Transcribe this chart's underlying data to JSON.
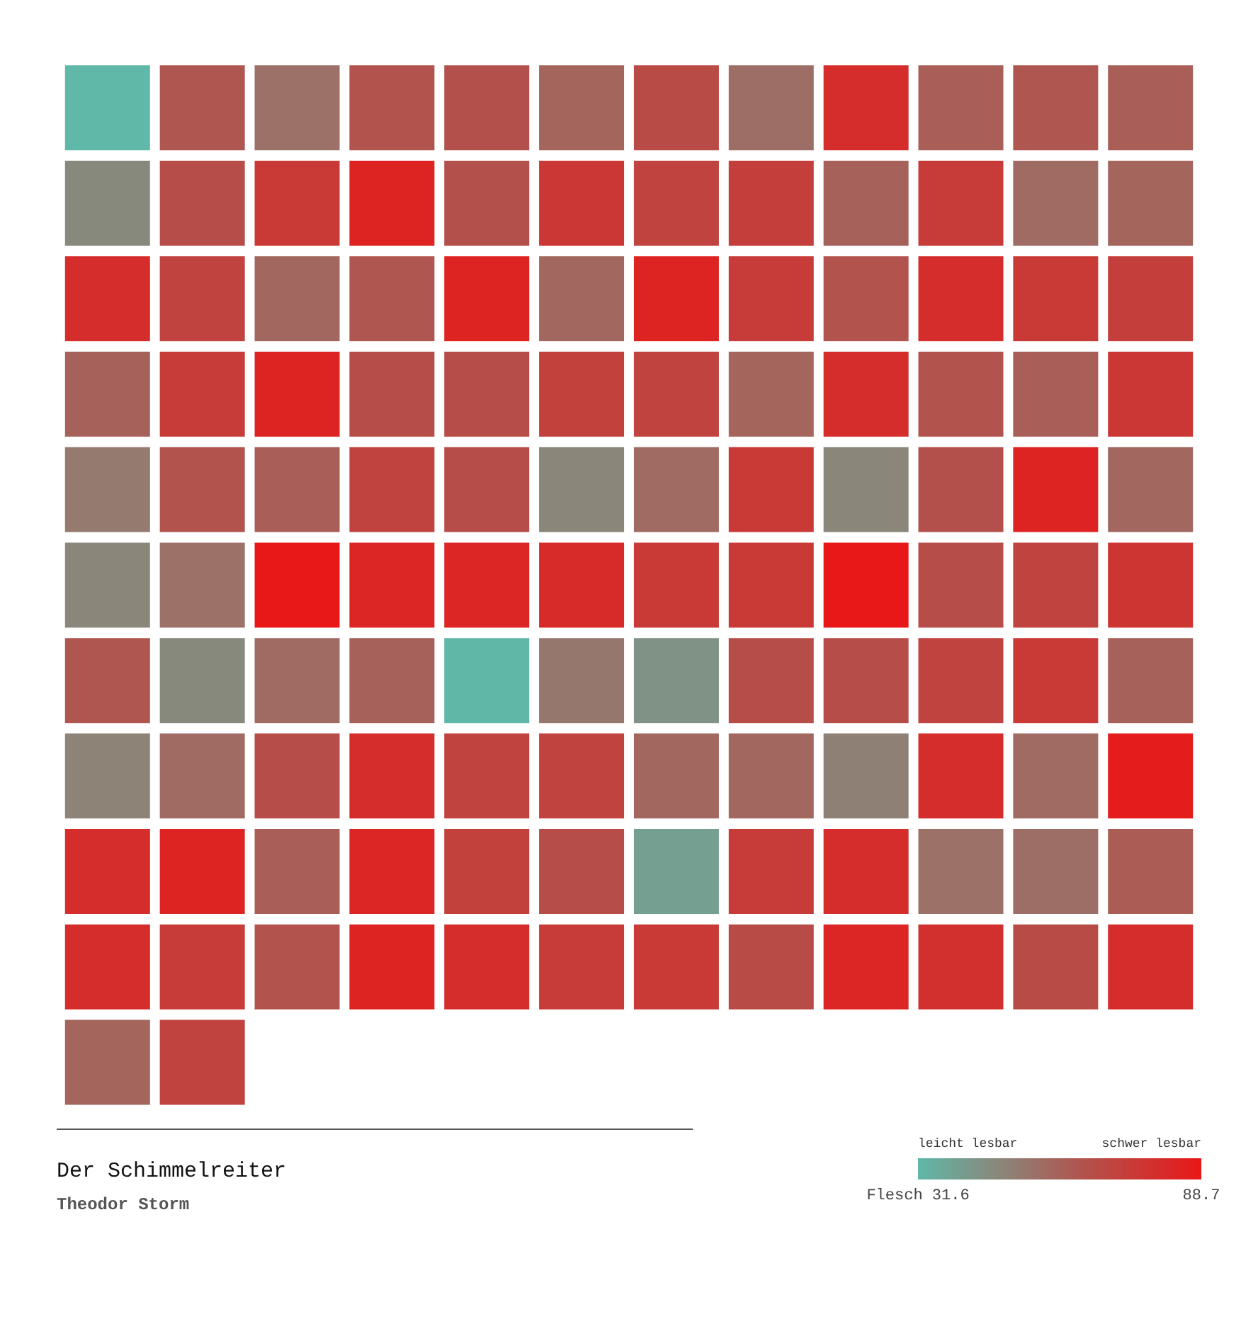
{
  "chart_data": {
    "type": "heatmap",
    "title": "Der Schimmelreiter",
    "subtitle": "Theodor Storm",
    "categories": [
      null,
      null,
      null,
      null,
      null,
      null,
      null,
      null,
      null,
      null,
      null,
      null
    ],
    "y_categories": [
      null,
      null,
      null,
      null,
      null,
      null,
      null,
      null,
      null,
      null,
      null
    ],
    "cells": [
      [
        31.6,
        64,
        55,
        65,
        66,
        59,
        68,
        56,
        80,
        61,
        64,
        61
      ],
      [
        47,
        67,
        75,
        84,
        66,
        76,
        71,
        73,
        60,
        74,
        57,
        59
      ],
      [
        80,
        71,
        58,
        64,
        84,
        58,
        84,
        74,
        65,
        80,
        75,
        73
      ],
      [
        60,
        74,
        84,
        67,
        67,
        72,
        71,
        59,
        80,
        65,
        61,
        76
      ],
      [
        52,
        65,
        61,
        71,
        67,
        48,
        57,
        75,
        48,
        66,
        84,
        58
      ],
      [
        48,
        55,
        88.7,
        83,
        83,
        81,
        75,
        75,
        88.7,
        67,
        71,
        77
      ],
      [
        64,
        47,
        57,
        60,
        32,
        53,
        44,
        67,
        67,
        71,
        75,
        60
      ],
      [
        49,
        57,
        67,
        80,
        71,
        71,
        58,
        58,
        50,
        80,
        57,
        87
      ],
      [
        80,
        84,
        61,
        83,
        72,
        67,
        40,
        74,
        80,
        55,
        56,
        62
      ],
      [
        80,
        74,
        65,
        84,
        80,
        74,
        75,
        68,
        83,
        79,
        68,
        80
      ],
      [
        59,
        71,
        null,
        null,
        null,
        null,
        null,
        null,
        null,
        null,
        null,
        null
      ]
    ],
    "clim": [
      31.6,
      88.7
    ],
    "cticks": [
      {
        "value": 31.6,
        "label": "Flesch 31.6"
      },
      {
        "value": 88.7,
        "label": "88.7"
      }
    ],
    "annotations": [
      "leicht lesbar",
      "schwer lesbar"
    ],
    "tick_labels": false
  }
}
